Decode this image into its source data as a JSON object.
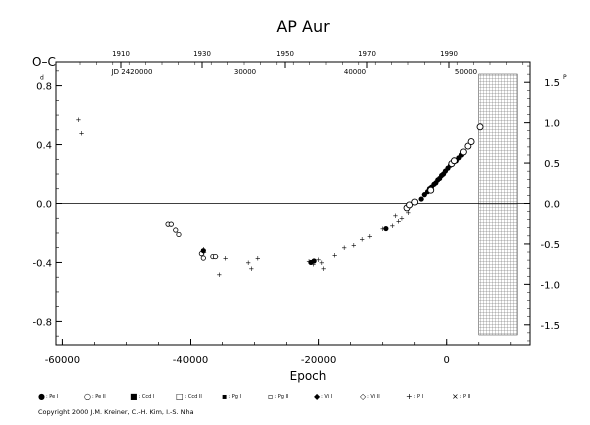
{
  "chart_data": {
    "type": "scatter",
    "title": "AP Aur",
    "xlabel": "Epoch",
    "ylabel": "O–C",
    "xlim": [
      -61000,
      13000
    ],
    "ylim": [
      -0.96,
      0.96
    ],
    "right_ylim": [
      -1.75,
      1.75
    ],
    "x_ticks": [
      "-60000",
      "-40000",
      "-20000",
      "0"
    ],
    "y_ticks": [
      "0.8",
      "0.4",
      "0.0",
      "-0.4",
      "-0.8"
    ],
    "right_ticks": [
      "1.5",
      "1.0",
      "0.5",
      "0.0",
      "-0.5",
      "-1.0",
      "-1.5"
    ],
    "top_year_ticks": [
      "1910",
      "1930",
      "1950",
      "1970",
      "1990"
    ],
    "top_jd_labels": [
      "JD 2420000",
      "30000",
      "40000",
      "50000"
    ],
    "unit_marks": {
      "left": "d",
      "right": "P"
    },
    "zero_line": true,
    "hatched_region_x": [
      5000,
      11000
    ],
    "legend_position": "bottom",
    "legend": [
      {
        "symbol": "●",
        "label": ": Pe I"
      },
      {
        "symbol": "○",
        "label": ": Pe II"
      },
      {
        "symbol": "■",
        "label": ": Ccd I"
      },
      {
        "symbol": "□",
        "label": ": Ccd II"
      },
      {
        "symbol": "▪",
        "label": ": Pg I"
      },
      {
        "symbol": "▫",
        "label": ": Pg II"
      },
      {
        "symbol": "◆",
        "label": ": Vi I"
      },
      {
        "symbol": "◇",
        "label": ": Vi II"
      },
      {
        "symbol": "+",
        "label": ": P I"
      },
      {
        "symbol": "×",
        "label": ": P II"
      }
    ],
    "series": [
      {
        "marker": "photographic",
        "points": [
          [
            -57500,
            0.57
          ],
          [
            -57000,
            0.48
          ],
          [
            -38000,
            -0.31
          ],
          [
            -37900,
            -0.33
          ],
          [
            -36000,
            -0.36
          ],
          [
            -35500,
            -0.48
          ],
          [
            -34500,
            -0.37
          ],
          [
            -31000,
            -0.4
          ],
          [
            -30500,
            -0.44
          ],
          [
            -29500,
            -0.37
          ],
          [
            -21500,
            -0.39
          ],
          [
            -20800,
            -0.41
          ],
          [
            -20000,
            -0.38
          ],
          [
            -19500,
            -0.4
          ],
          [
            -19200,
            -0.44
          ],
          [
            -17500,
            -0.35
          ],
          [
            -16000,
            -0.3
          ],
          [
            -14500,
            -0.28
          ],
          [
            -13200,
            -0.24
          ],
          [
            -12000,
            -0.22
          ],
          [
            -10000,
            -0.17
          ],
          [
            -8500,
            -0.15
          ],
          [
            -8000,
            -0.08
          ],
          [
            -7000,
            -0.1
          ],
          [
            -6000,
            -0.06
          ],
          [
            -7500,
            -0.12
          ]
        ]
      },
      {
        "marker": "visual-open",
        "points": [
          [
            -43500,
            -0.14
          ],
          [
            -43000,
            -0.14
          ],
          [
            -42300,
            -0.18
          ],
          [
            -41800,
            -0.21
          ],
          [
            -38300,
            -0.34
          ],
          [
            -38000,
            -0.37
          ],
          [
            -36500,
            -0.36
          ],
          [
            -36100,
            -0.36
          ]
        ]
      },
      {
        "marker": "pe-filled",
        "points": [
          [
            -38000,
            -0.32
          ],
          [
            -21200,
            -0.4
          ],
          [
            -20700,
            -0.39
          ],
          [
            -9500,
            -0.17
          ],
          [
            -4000,
            0.03
          ],
          [
            -3500,
            0.06
          ],
          [
            -3000,
            0.08
          ],
          [
            -2700,
            0.1
          ],
          [
            -2400,
            0.11
          ],
          [
            -2000,
            0.13
          ],
          [
            -1700,
            0.14
          ],
          [
            -1400,
            0.16
          ],
          [
            -1100,
            0.17
          ],
          [
            -800,
            0.19
          ],
          [
            -500,
            0.2
          ],
          [
            -200,
            0.22
          ],
          [
            200,
            0.24
          ],
          [
            600,
            0.26
          ],
          [
            1500,
            0.29
          ],
          [
            1900,
            0.31
          ],
          [
            2300,
            0.33
          ],
          [
            2700,
            0.35
          ]
        ]
      },
      {
        "marker": "pe-open",
        "points": [
          [
            -6200,
            -0.03
          ],
          [
            -5800,
            -0.01
          ],
          [
            -5000,
            0.01
          ],
          [
            -2500,
            0.09
          ],
          [
            800,
            0.27
          ],
          [
            1200,
            0.29
          ],
          [
            2600,
            0.35
          ],
          [
            3300,
            0.39
          ],
          [
            3800,
            0.42
          ],
          [
            5200,
            0.52
          ]
        ]
      }
    ]
  },
  "copyright": "Copyright 2000 J.M. Kreiner, C.-H. Kim, I.-S. Nha"
}
